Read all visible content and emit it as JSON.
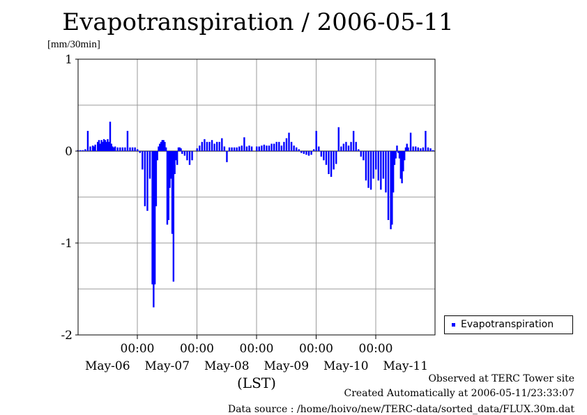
{
  "chart_data": {
    "type": "bar",
    "title": "Evapotranspiration / 2006-05-11",
    "ylabel": "[mm/30min]",
    "xlabel": "(LST)",
    "ylim": [
      -2,
      1
    ],
    "yticks": [
      "1",
      "0",
      "-1",
      "-2"
    ],
    "time_ticks": [
      "00:00",
      "00:00",
      "00:00",
      "00:00",
      "00:00"
    ],
    "date_ticks": [
      "May-06",
      "May-07",
      "May-08",
      "May-09",
      "May-10",
      "May-11"
    ],
    "grid": true,
    "legend": "right",
    "series": [
      {
        "name": "Evapotranspiration",
        "color": "#0000ff",
        "x": [
          "05-06 00:00",
          "05-06 01:00",
          "05-06 02:00",
          "05-06 03:00",
          "05-06 04:00",
          "05-06 05:00",
          "05-06 06:00",
          "05-06 06:30",
          "05-06 07:00",
          "05-06 08:00",
          "05-06 08:30",
          "05-06 09:00",
          "05-06 09:30",
          "05-06 10:00",
          "05-06 10:30",
          "05-06 11:00",
          "05-06 11:30",
          "05-06 12:00",
          "05-06 12:30",
          "05-06 13:00",
          "05-06 13:30",
          "05-06 14:00",
          "05-06 14:30",
          "05-06 15:00",
          "05-06 16:00",
          "05-06 17:00",
          "05-06 18:00",
          "05-06 19:00",
          "05-06 20:00",
          "05-06 21:00",
          "05-06 22:00",
          "05-06 23:00",
          "05-07 00:00",
          "05-07 01:00",
          "05-07 02:00",
          "05-07 03:00",
          "05-07 04:00",
          "05-07 05:00",
          "05-07 06:00",
          "05-07 06:30",
          "05-07 07:00",
          "05-07 07:30",
          "05-07 08:00",
          "05-07 08:30",
          "05-07 09:00",
          "05-07 09:30",
          "05-07 10:00",
          "05-07 10:30",
          "05-07 11:00",
          "05-07 11:30",
          "05-07 12:00",
          "05-07 12:30",
          "05-07 13:00",
          "05-07 13:30",
          "05-07 14:00",
          "05-07 14:30",
          "05-07 15:00",
          "05-07 15:30",
          "05-07 16:00",
          "05-07 16:30",
          "05-07 17:00",
          "05-07 17:30",
          "05-07 18:00",
          "05-07 19:00",
          "05-07 20:00",
          "05-07 21:00",
          "05-07 22:00",
          "05-08 00:00",
          "05-08 01:00",
          "05-08 02:00",
          "05-08 03:00",
          "05-08 04:00",
          "05-08 05:00",
          "05-08 06:00",
          "05-08 07:00",
          "05-08 08:00",
          "05-08 09:00",
          "05-08 10:00",
          "05-08 11:00",
          "05-08 12:00",
          "05-08 13:00",
          "05-08 14:00",
          "05-08 15:00",
          "05-08 16:00",
          "05-08 17:00",
          "05-08 18:00",
          "05-08 19:00",
          "05-08 20:00",
          "05-08 21:00",
          "05-08 22:00",
          "05-09 00:00",
          "05-09 01:00",
          "05-09 02:00",
          "05-09 03:00",
          "05-09 04:00",
          "05-09 05:00",
          "05-09 06:00",
          "05-09 07:00",
          "05-09 08:00",
          "05-09 09:00",
          "05-09 10:00",
          "05-09 11:00",
          "05-09 12:00",
          "05-09 13:00",
          "05-09 14:00",
          "05-09 15:00",
          "05-09 16:00",
          "05-09 17:00",
          "05-09 18:00",
          "05-09 19:00",
          "05-09 20:00",
          "05-09 21:00",
          "05-09 22:00",
          "05-09 23:00",
          "05-10 00:00",
          "05-10 01:00",
          "05-10 02:00",
          "05-10 03:00",
          "05-10 04:00",
          "05-10 05:00",
          "05-10 06:00",
          "05-10 07:00",
          "05-10 08:00",
          "05-10 09:00",
          "05-10 10:00",
          "05-10 11:00",
          "05-10 12:00",
          "05-10 13:00",
          "05-10 14:00",
          "05-10 15:00",
          "05-10 16:00",
          "05-10 17:00",
          "05-10 18:00",
          "05-10 19:00",
          "05-10 20:00",
          "05-10 21:00",
          "05-10 22:00",
          "05-10 23:00",
          "05-11 00:00",
          "05-11 01:00",
          "05-11 02:00",
          "05-11 03:00",
          "05-11 04:00",
          "05-11 05:00",
          "05-11 06:00",
          "05-11 06:30",
          "05-11 07:00",
          "05-11 07:30",
          "05-11 08:00",
          "05-11 08:30",
          "05-11 09:00",
          "05-11 09:30",
          "05-11 10:00",
          "05-11 10:30",
          "05-11 11:00",
          "05-11 11:30",
          "05-11 12:00",
          "05-11 12:30",
          "05-11 13:00",
          "05-11 14:00",
          "05-11 15:00",
          "05-11 16:00",
          "05-11 17:00",
          "05-11 18:00",
          "05-11 19:00",
          "05-11 20:00",
          "05-11 21:00",
          "05-11 22:00",
          "05-11 23:00"
        ],
        "values": [
          0.01,
          0.01,
          0.01,
          0.02,
          0.22,
          0.05,
          0.06,
          0.05,
          0.07,
          0.1,
          0.12,
          0.08,
          0.12,
          0.1,
          0.13,
          0.12,
          0.1,
          0.13,
          0.1,
          0.32,
          0.08,
          0.05,
          0.04,
          0.05,
          0.04,
          0.04,
          0.04,
          0.04,
          0.22,
          0.04,
          0.04,
          0.04,
          0.02,
          -0.02,
          -0.2,
          -0.6,
          -0.65,
          -0.3,
          -1.45,
          -1.7,
          -1.45,
          -0.6,
          -0.1,
          0.05,
          0.08,
          0.1,
          0.12,
          0.12,
          0.1,
          0.04,
          -0.8,
          -0.75,
          -0.4,
          -0.3,
          -0.9,
          -1.42,
          -0.25,
          -0.1,
          -0.15,
          0.04,
          0.04,
          0.03,
          -0.03,
          -0.05,
          -0.1,
          -0.15,
          -0.1,
          0.03,
          0.06,
          0.1,
          0.13,
          0.1,
          0.1,
          0.12,
          0.08,
          0.1,
          0.1,
          0.14,
          0.05,
          -0.12,
          0.04,
          0.04,
          0.04,
          0.04,
          0.05,
          0.06,
          0.15,
          0.05,
          0.06,
          0.05,
          0.05,
          0.05,
          0.06,
          0.07,
          0.06,
          0.06,
          0.08,
          0.08,
          0.1,
          0.1,
          0.06,
          0.1,
          0.14,
          0.2,
          0.1,
          0.06,
          0.04,
          0.02,
          -0.02,
          -0.03,
          -0.04,
          -0.05,
          -0.04,
          0.02,
          0.22,
          0.05,
          -0.06,
          -0.1,
          -0.15,
          -0.25,
          -0.28,
          -0.2,
          -0.14,
          0.26,
          0.05,
          0.08,
          0.1,
          0.06,
          0.1,
          0.22,
          0.1,
          0.02,
          -0.06,
          -0.1,
          -0.32,
          -0.4,
          -0.42,
          -0.3,
          -0.2,
          -0.32,
          -0.42,
          -0.3,
          -0.45,
          -0.75,
          -0.85,
          -0.8,
          -0.45,
          -0.15,
          -0.08,
          0.06,
          -0.02,
          -0.08,
          -0.3,
          -0.35,
          -0.22,
          -0.1,
          0.04,
          0.08,
          0.04,
          0.2,
          0.05,
          0.05,
          0.04,
          0.03,
          0.04,
          0.22,
          0.04,
          0.03,
          0.01
        ]
      }
    ],
    "legend_entry": "Evapotranspiration"
  },
  "footer": {
    "line1": "Observed at TERC Tower site",
    "line2": "Created Automatically at 2006-05-11/23:33:07",
    "line3": "Data source : /home/hoivo/new/TERC-data/sorted_data/FLUX.30m.dat"
  }
}
